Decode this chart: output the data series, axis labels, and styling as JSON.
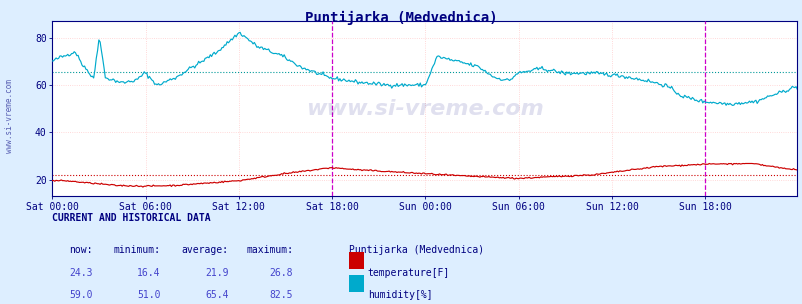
{
  "title": "Puntijarka (Medvednica)",
  "title_color": "#000080",
  "bg_color": "#ddeeff",
  "plot_bg_color": "#ffffff",
  "grid_color": "#ffcccc",
  "temp_color": "#cc0000",
  "hum_color": "#00aacc",
  "temp_avg_color": "#cc0000",
  "hum_avg_color": "#009999",
  "magenta_line_color": "#cc00cc",
  "x_tick_labels": [
    "Sat 00:00",
    "Sat 06:00",
    "Sat 12:00",
    "Sat 18:00",
    "Sun 00:00",
    "Sun 06:00",
    "Sun 12:00",
    "Sun 18:00"
  ],
  "x_tick_positions": [
    0,
    72,
    144,
    216,
    288,
    360,
    432,
    504
  ],
  "ylim": [
    13,
    87
  ],
  "yticks": [
    20,
    40,
    60,
    80
  ],
  "n_points": 576,
  "temp_now": "24.3",
  "temp_min": "16.4",
  "temp_avg": 21.9,
  "temp_max": "26.8",
  "hum_now": "59.0",
  "hum_min": "51.0",
  "hum_avg": 65.4,
  "hum_max": "82.5",
  "text_color": "#000080",
  "watermark": "www.si-vreme.com",
  "watermark_color": "#000080",
  "sidebar_text": "www.si-vreme.com",
  "magenta_x": 216,
  "magenta_x2": 504,
  "spine_color": "#000080",
  "tick_color": "#000080"
}
